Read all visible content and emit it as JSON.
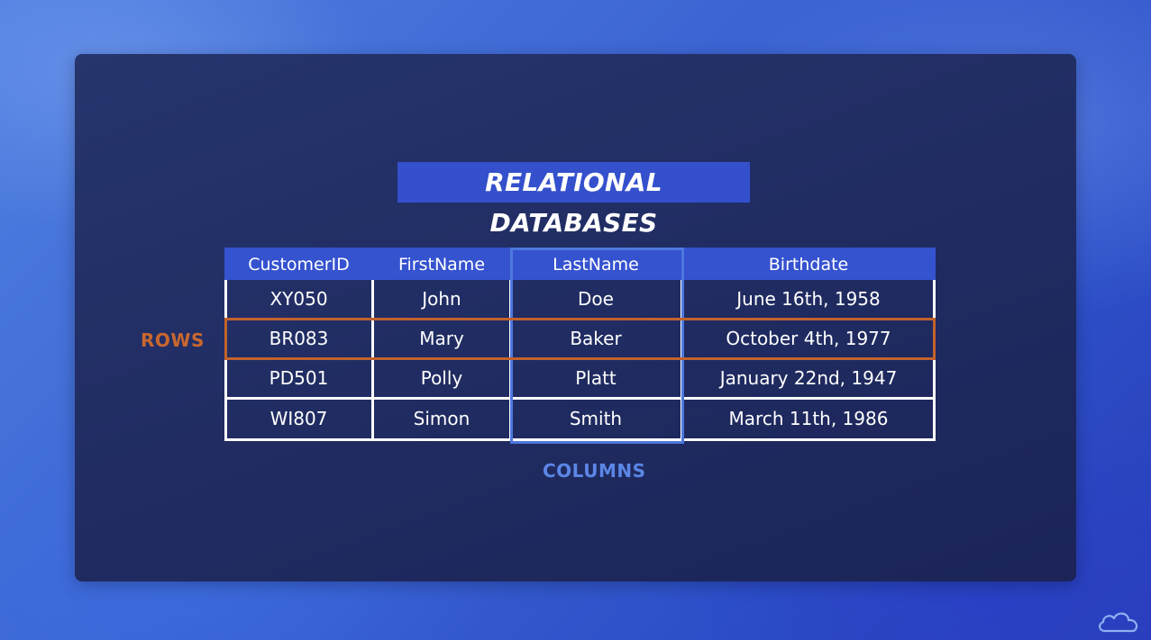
{
  "title": "RELATIONAL DATABASES",
  "table": {
    "headers": [
      "CustomerID",
      "FirstName",
      "LastName",
      "Birthdate"
    ],
    "rows": [
      [
        "XY050",
        "John",
        "Doe",
        "June 16th, 1958"
      ],
      [
        "BR083",
        "Mary",
        "Baker",
        "October 4th, 1977"
      ],
      [
        "PD501",
        "Polly",
        "Platt",
        "January 22nd, 1947"
      ],
      [
        "WI807",
        "Simon",
        "Smith",
        "March 11th, 1986"
      ]
    ]
  },
  "labels": {
    "rows": "ROWS",
    "columns": "COLUMNS"
  },
  "colors": {
    "title_bg": "#3450cc",
    "header_bg": "#3552cf",
    "row_highlight": "#c2622d",
    "column_highlight": "#4d78de"
  },
  "icons": {
    "corner_logo": "cloud-icon"
  }
}
